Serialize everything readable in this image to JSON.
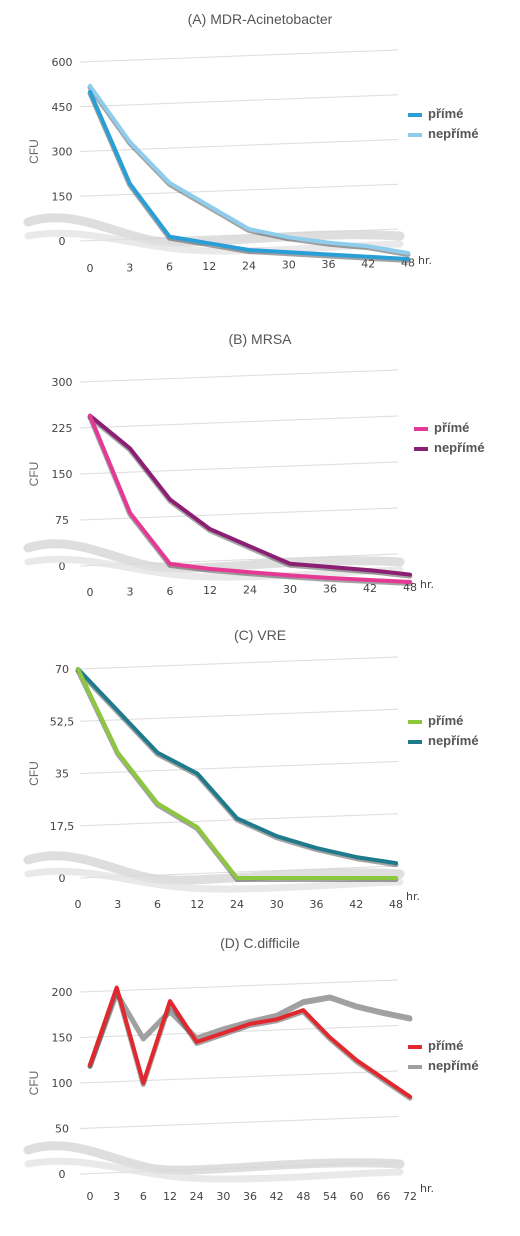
{
  "chart_data": [
    {
      "type": "line",
      "title": "(A) MDR-Acinetobacter",
      "ylabel": "CFU",
      "x_unit": "hr.",
      "x": [
        "0",
        "3",
        "6",
        "12",
        "24",
        "30",
        "36",
        "42",
        "48"
      ],
      "y_ticks": [
        "600",
        "450",
        "300",
        "150",
        "0"
      ],
      "ylim": [
        0,
        600
      ],
      "series": [
        {
          "name": "přímé",
          "color": "#2a9fd6",
          "values": [
            500,
            200,
            30,
            15,
            0,
            0,
            0,
            0,
            0
          ]
        },
        {
          "name": "nepřímé",
          "color": "#8fcdec",
          "values": [
            520,
            340,
            210,
            140,
            70,
            50,
            40,
            35,
            20
          ]
        }
      ]
    },
    {
      "type": "line",
      "title": "(B) MRSA",
      "ylabel": "CFU",
      "x_unit": "hr.",
      "x": [
        "0",
        "3",
        "6",
        "12",
        "24",
        "30",
        "36",
        "42",
        "48"
      ],
      "y_ticks": [
        "300",
        "225",
        "150",
        "75",
        "0"
      ],
      "ylim": [
        0,
        300
      ],
      "series": [
        {
          "name": "přímé",
          "color": "#e43a95",
          "values": [
            245,
            90,
            10,
            5,
            3,
            1,
            0,
            0,
            0
          ]
        },
        {
          "name": "nepřímé",
          "color": "#8b1f73",
          "values": [
            245,
            195,
            115,
            70,
            45,
            20,
            18,
            16,
            12
          ]
        }
      ]
    },
    {
      "type": "line",
      "title": "(C) VRE",
      "ylabel": "CFU",
      "x_unit": "hr.",
      "x": [
        "0",
        "3",
        "6",
        "12",
        "24",
        "30",
        "36",
        "42",
        "48"
      ],
      "y_ticks": [
        "70",
        "52,5",
        "35",
        "17,5",
        "0"
      ],
      "ylim": [
        0,
        70
      ],
      "series": [
        {
          "name": "přímé",
          "color": "#8dc63f",
          "values": [
            70,
            42,
            25,
            17,
            0,
            0,
            0,
            0,
            0
          ]
        },
        {
          "name": "nepřímé",
          "color": "#1f7a8c",
          "values": [
            70,
            56,
            42,
            35,
            20,
            14,
            10,
            7,
            5
          ]
        }
      ]
    },
    {
      "type": "line",
      "title": "(D) C.difficile",
      "ylabel": "CFU",
      "x_unit": "hr.",
      "x": [
        "0",
        "3",
        "6",
        "12",
        "24",
        "30",
        "36",
        "42",
        "48",
        "54",
        "60",
        "66",
        "72"
      ],
      "y_ticks": [
        "200",
        "150",
        "100",
        "50",
        "0"
      ],
      "ylim": [
        0,
        200
      ],
      "series": [
        {
          "name": "přímé",
          "color": "#e0282e",
          "values": [
            120,
            205,
            100,
            190,
            145,
            155,
            165,
            170,
            180,
            150,
            125,
            105,
            85
          ]
        },
        {
          "name": "nepřímé",
          "color": "#a0a0a0",
          "values": [
            120,
            200,
            150,
            180,
            150,
            160,
            168,
            175,
            190,
            195,
            185,
            178,
            172
          ]
        }
      ]
    }
  ]
}
